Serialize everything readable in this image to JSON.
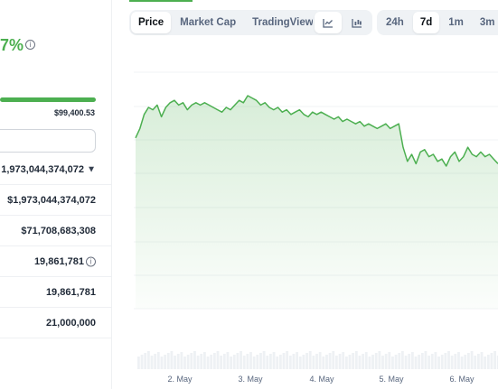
{
  "stats": {
    "change_percent": "7%",
    "range_high": "$99,400.53",
    "rows": [
      {
        "value": "1,973,044,374,072",
        "suffix": "chevron-down-icon"
      },
      {
        "value": "$1,973,044,374,072"
      },
      {
        "value": "$71,708,683,308"
      },
      {
        "value": "19,861,781",
        "suffix": "info-icon"
      },
      {
        "value": "19,861,781"
      },
      {
        "value": "21,000,000"
      }
    ]
  },
  "chart_tabs": {
    "type": [
      {
        "label": "Price",
        "active": true
      },
      {
        "label": "Market Cap",
        "active": false
      },
      {
        "label": "TradingView",
        "active": false
      }
    ],
    "style_icons": [
      "line-chart-icon",
      "candlestick-chart-icon"
    ],
    "ranges": [
      {
        "label": "24h",
        "active": false
      },
      {
        "label": "7d",
        "active": true
      },
      {
        "label": "1m",
        "active": false
      },
      {
        "label": "3m",
        "active": false
      }
    ]
  },
  "colors": {
    "accent": "#4caf50",
    "line": "#4caf50"
  },
  "chart_data": {
    "type": "area",
    "x_labels": [
      "2. May",
      "3. May",
      "4. May",
      "5. May",
      "6. May"
    ],
    "values": [
      0.72,
      0.76,
      0.82,
      0.85,
      0.84,
      0.86,
      0.81,
      0.85,
      0.87,
      0.88,
      0.86,
      0.87,
      0.84,
      0.86,
      0.87,
      0.86,
      0.87,
      0.86,
      0.85,
      0.84,
      0.83,
      0.85,
      0.84,
      0.86,
      0.88,
      0.87,
      0.9,
      0.89,
      0.88,
      0.86,
      0.87,
      0.85,
      0.84,
      0.85,
      0.83,
      0.84,
      0.82,
      0.83,
      0.84,
      0.82,
      0.81,
      0.83,
      0.82,
      0.83,
      0.82,
      0.81,
      0.8,
      0.81,
      0.79,
      0.8,
      0.79,
      0.78,
      0.79,
      0.77,
      0.78,
      0.77,
      0.76,
      0.77,
      0.78,
      0.76,
      0.77,
      0.78,
      0.68,
      0.62,
      0.65,
      0.61,
      0.66,
      0.67,
      0.64,
      0.65,
      0.62,
      0.63,
      0.6,
      0.64,
      0.66,
      0.62,
      0.64,
      0.68,
      0.65,
      0.64,
      0.66,
      0.64,
      0.65,
      0.63,
      0.61
    ]
  }
}
